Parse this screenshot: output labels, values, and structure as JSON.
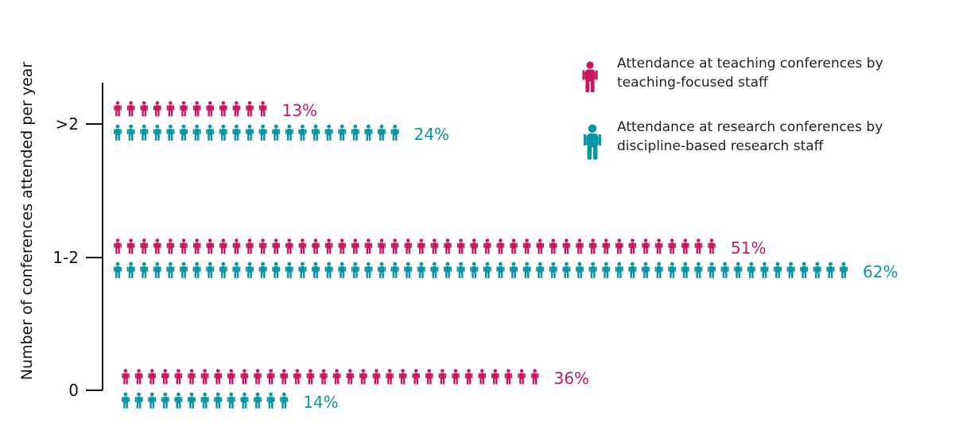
{
  "chart_data": {
    "type": "bar",
    "orientation": "horizontal",
    "ylabel": "Number of conferences attended per year",
    "categories": [
      ">2",
      "1-2",
      "0"
    ],
    "series": [
      {
        "name": "Attendance at teaching conferences by teaching-focused staff",
        "color": "#c8175e",
        "values": [
          13,
          51,
          36
        ],
        "labels": [
          "13%",
          "51%",
          "36%"
        ]
      },
      {
        "name": "Attendance at research conferences by discipline-based research staff",
        "color": "#0a95a6",
        "values": [
          24,
          62,
          14
        ],
        "labels": [
          "24%",
          "62%",
          "14%"
        ]
      }
    ],
    "legend_position": "top-right",
    "icon": "person-icon",
    "grid": false
  }
}
